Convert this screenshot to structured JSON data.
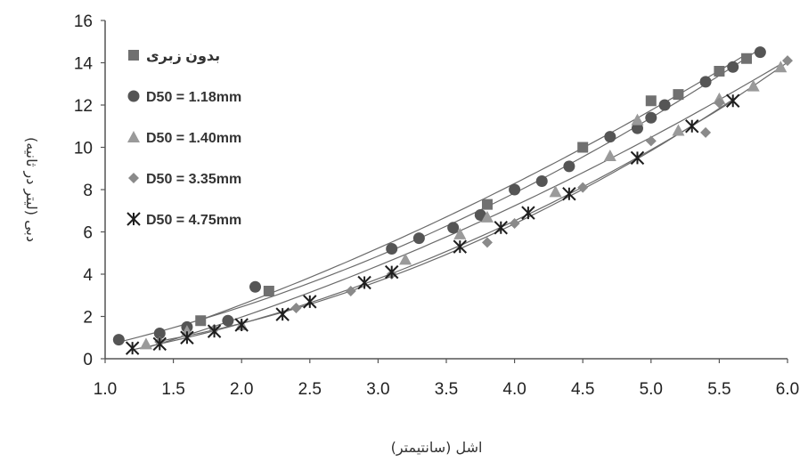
{
  "chart_data": {
    "type": "scatter",
    "title": "",
    "xlabel": "اشل (سانتیمتر)",
    "ylabel": "دبی (لیتر در ثانیه)",
    "xlim": [
      1.0,
      6.0
    ],
    "ylim": [
      0,
      16
    ],
    "x_ticks": [
      "1.0",
      "1.5",
      "2.0",
      "2.5",
      "3.0",
      "3.5",
      "4.0",
      "4.5",
      "5.0",
      "5.5",
      "6.0"
    ],
    "y_ticks": [
      "0",
      "2",
      "4",
      "6",
      "8",
      "10",
      "12",
      "14",
      "16"
    ],
    "grid": false,
    "legend_position": "top-left",
    "trendlines": "quadratic fit per series",
    "series": [
      {
        "name": "بدون زبری",
        "marker": "square",
        "color": "#707070",
        "points": [
          [
            1.7,
            1.8
          ],
          [
            2.2,
            3.2
          ],
          [
            3.8,
            7.3
          ],
          [
            4.5,
            10.0
          ],
          [
            5.0,
            12.2
          ],
          [
            5.2,
            12.5
          ],
          [
            5.5,
            13.6
          ],
          [
            5.7,
            14.2
          ]
        ]
      },
      {
        "name": "D50 = 1.18mm",
        "marker": "circle",
        "color": "#555555",
        "points": [
          [
            1.1,
            0.9
          ],
          [
            1.4,
            1.2
          ],
          [
            1.6,
            1.5
          ],
          [
            1.9,
            1.8
          ],
          [
            2.1,
            3.4
          ],
          [
            3.1,
            5.2
          ],
          [
            3.3,
            5.7
          ],
          [
            3.55,
            6.2
          ],
          [
            3.75,
            6.8
          ],
          [
            4.0,
            8.0
          ],
          [
            4.2,
            8.4
          ],
          [
            4.4,
            9.1
          ],
          [
            4.7,
            10.5
          ],
          [
            4.9,
            10.9
          ],
          [
            5.0,
            11.4
          ],
          [
            5.1,
            12.0
          ],
          [
            5.4,
            13.1
          ],
          [
            5.6,
            13.8
          ],
          [
            5.8,
            14.5
          ]
        ]
      },
      {
        "name": "D50 = 1.40mm",
        "marker": "triangle",
        "color": "#9a9a9a",
        "points": [
          [
            1.3,
            0.7
          ],
          [
            1.6,
            1.3
          ],
          [
            2.0,
            1.6
          ],
          [
            3.2,
            4.7
          ],
          [
            3.6,
            5.9
          ],
          [
            3.8,
            6.7
          ],
          [
            4.3,
            7.9
          ],
          [
            4.7,
            9.6
          ],
          [
            4.9,
            11.3
          ],
          [
            5.2,
            10.8
          ],
          [
            5.5,
            12.3
          ],
          [
            5.75,
            12.9
          ],
          [
            5.95,
            13.8
          ]
        ]
      },
      {
        "name": "D50 = 3.35mm",
        "marker": "diamond",
        "color": "#8a8a8a",
        "points": [
          [
            1.4,
            0.8
          ],
          [
            1.8,
            1.4
          ],
          [
            2.4,
            2.4
          ],
          [
            2.8,
            3.2
          ],
          [
            3.1,
            4.0
          ],
          [
            3.8,
            5.5
          ],
          [
            4.0,
            6.4
          ],
          [
            4.5,
            8.1
          ],
          [
            5.0,
            10.3
          ],
          [
            5.4,
            10.7
          ],
          [
            5.5,
            12.1
          ],
          [
            6.0,
            14.1
          ]
        ]
      },
      {
        "name": "D50 = 4.75mm",
        "marker": "asterisk",
        "color": "#1e1e1e",
        "points": [
          [
            1.2,
            0.5
          ],
          [
            1.4,
            0.7
          ],
          [
            1.6,
            1.0
          ],
          [
            1.8,
            1.3
          ],
          [
            2.0,
            1.6
          ],
          [
            2.3,
            2.1
          ],
          [
            2.5,
            2.7
          ],
          [
            2.9,
            3.6
          ],
          [
            3.1,
            4.1
          ],
          [
            3.6,
            5.3
          ],
          [
            3.9,
            6.2
          ],
          [
            4.1,
            6.9
          ],
          [
            4.4,
            7.8
          ],
          [
            4.9,
            9.5
          ],
          [
            5.3,
            11.0
          ],
          [
            5.6,
            12.2
          ]
        ]
      }
    ]
  }
}
